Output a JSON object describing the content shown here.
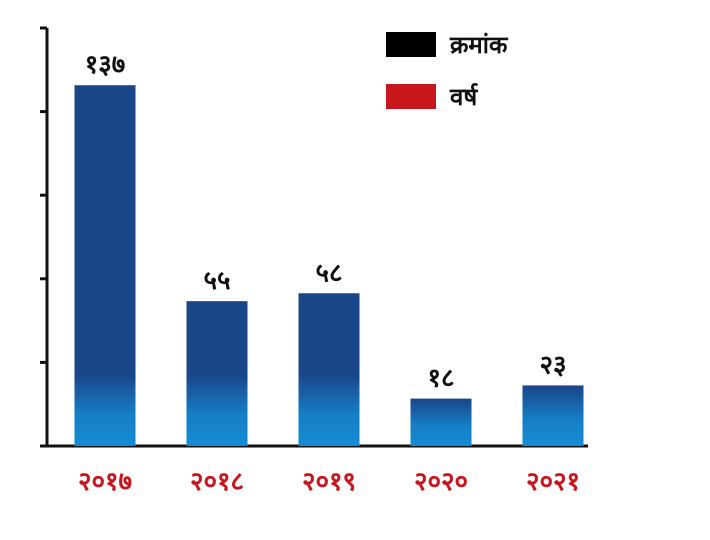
{
  "chart_data": {
    "type": "bar",
    "categories": [
      "२०१७",
      "२०१८",
      "२०१९",
      "२०२०",
      "२०२१"
    ],
    "values": [
      137,
      55,
      58,
      18,
      23
    ],
    "value_labels": [
      "१३७",
      "५५",
      "५८",
      "१८",
      "२३"
    ],
    "title": "",
    "xlabel": "",
    "ylabel": "",
    "ylim": [
      0,
      150
    ],
    "grid": false,
    "legend_position": "top-right",
    "legend": [
      {
        "label": "क्रमांक",
        "color": "#000000"
      },
      {
        "label": "वर्ष",
        "color": "#c8161d"
      }
    ]
  },
  "colors": {
    "bar": "#1a4589",
    "bar_glow": "#1490d8",
    "category_text": "#c8161d",
    "axis": "#111111"
  }
}
